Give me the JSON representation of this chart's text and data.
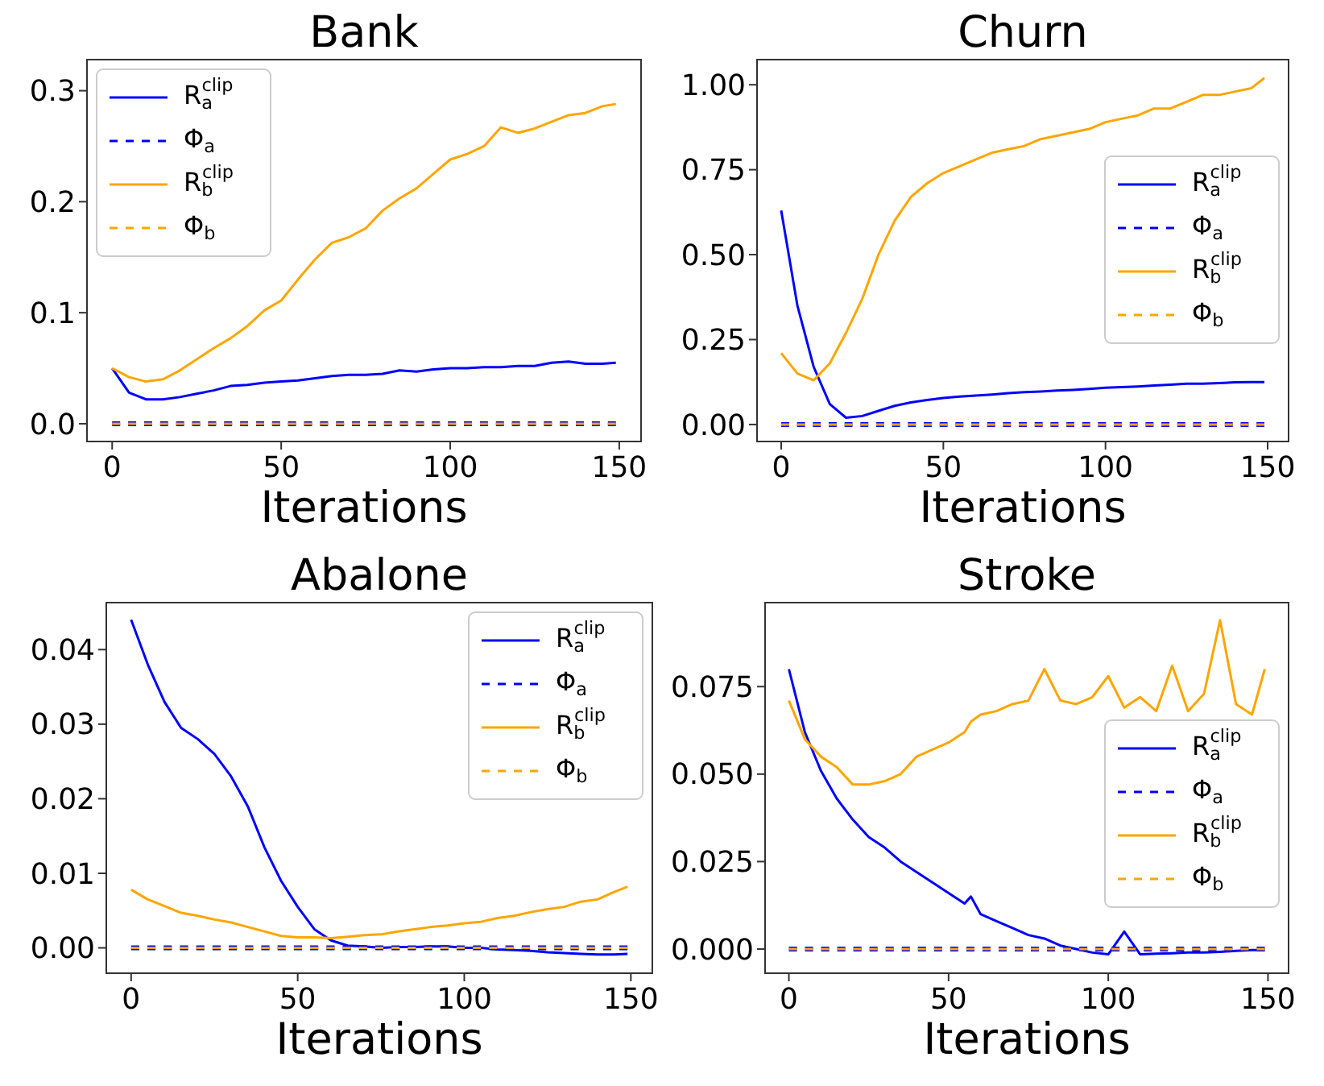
{
  "chart_data": [
    {
      "type": "line",
      "title": "Bank",
      "xlabel": "Iterations",
      "legend": "top left",
      "xlim": [
        -7.45,
        156.45
      ],
      "ylim": [
        -0.016,
        0.328
      ],
      "xticks": [
        0,
        50,
        100,
        150
      ],
      "yticks": [
        {
          "value": 0,
          "label": "0.0"
        },
        {
          "value": 0.1,
          "label": "0.1"
        },
        {
          "value": 0.2,
          "label": "0.2"
        },
        {
          "value": 0.3,
          "label": "0.3"
        }
      ],
      "x": [
        0,
        5,
        10,
        15,
        20,
        25,
        30,
        35,
        40,
        45,
        50,
        55,
        60,
        65,
        70,
        75,
        80,
        85,
        90,
        95,
        100,
        105,
        110,
        115,
        120,
        125,
        130,
        135,
        140,
        145,
        149
      ],
      "series": [
        {
          "name": "R$_{a}$$^{clip}$",
          "color": "#0000ff",
          "line_style": "solid",
          "values": [
            0.05,
            0.028,
            0.022,
            0.022,
            0.024,
            0.027,
            0.03,
            0.034,
            0.035,
            0.037,
            0.038,
            0.039,
            0.041,
            0.043,
            0.044,
            0.044,
            0.045,
            0.048,
            0.047,
            0.049,
            0.05,
            0.05,
            0.051,
            0.051,
            0.052,
            0.052,
            0.055,
            0.056,
            0.054,
            0.054,
            0.055
          ]
        },
        {
          "name": "Φ$_{a}$",
          "color": "#0000ff",
          "line_style": "dashed",
          "values": [
            0,
            0,
            0,
            0,
            0,
            0,
            0,
            0,
            0,
            0,
            0,
            0,
            0,
            0,
            0,
            0,
            0,
            0,
            0,
            0,
            0,
            0,
            0,
            0,
            0,
            0,
            0,
            0,
            0,
            0,
            0
          ]
        },
        {
          "name": "R$_{b}$$^{clip}$",
          "color": "#ffa500",
          "line_style": "solid",
          "values": [
            0.05,
            0.042,
            0.038,
            0.04,
            0.048,
            0.058,
            0.068,
            0.077,
            0.088,
            0.102,
            0.111,
            0.13,
            0.148,
            0.163,
            0.168,
            0.176,
            0.192,
            0.203,
            0.212,
            0.225,
            0.238,
            0.243,
            0.25,
            0.267,
            0.262,
            0.266,
            0.272,
            0.278,
            0.28,
            0.286,
            0.288
          ]
        },
        {
          "name": "Φ$_{b}$",
          "color": "#ffa500",
          "line_style": "dashed",
          "values": [
            0,
            0,
            0,
            0,
            0,
            0,
            0,
            0,
            0,
            0,
            0,
            0,
            0,
            0,
            0,
            0,
            0,
            0,
            0,
            0,
            0,
            0,
            0,
            0,
            0,
            0,
            0,
            0,
            0,
            0,
            0
          ]
        }
      ]
    },
    {
      "type": "line",
      "title": "Churn",
      "xlabel": "Iterations",
      "legend": "right",
      "xlim": [
        -7.45,
        156.45
      ],
      "ylim": [
        -0.05,
        1.074
      ],
      "xticks": [
        0,
        50,
        100,
        150
      ],
      "yticks": [
        {
          "value": 0,
          "label": "0.00"
        },
        {
          "value": 0.25,
          "label": "0.25"
        },
        {
          "value": 0.5,
          "label": "0.50"
        },
        {
          "value": 0.75,
          "label": "0.75"
        },
        {
          "value": 1,
          "label": "1.00"
        }
      ],
      "x": [
        0,
        5,
        10,
        15,
        20,
        25,
        30,
        35,
        40,
        45,
        50,
        55,
        60,
        65,
        70,
        75,
        80,
        85,
        90,
        95,
        100,
        105,
        110,
        115,
        120,
        125,
        130,
        135,
        140,
        145,
        149
      ],
      "series": [
        {
          "name": "R$_{a}$$^{clip}$",
          "color": "#0000ff",
          "line_style": "solid",
          "values": [
            0.63,
            0.35,
            0.17,
            0.06,
            0.02,
            0.025,
            0.04,
            0.055,
            0.065,
            0.072,
            0.078,
            0.082,
            0.085,
            0.088,
            0.092,
            0.095,
            0.097,
            0.1,
            0.102,
            0.105,
            0.108,
            0.11,
            0.112,
            0.115,
            0.117,
            0.12,
            0.12,
            0.122,
            0.124,
            0.125,
            0.125
          ]
        },
        {
          "name": "Φ$_{a}$",
          "color": "#0000ff",
          "line_style": "dashed",
          "values": [
            0,
            0,
            0,
            0,
            0,
            0,
            0,
            0,
            0,
            0,
            0,
            0,
            0,
            0,
            0,
            0,
            0,
            0,
            0,
            0,
            0,
            0,
            0,
            0,
            0,
            0,
            0,
            0,
            0,
            0,
            0
          ]
        },
        {
          "name": "R$_{b}$$^{clip}$",
          "color": "#ffa500",
          "line_style": "solid",
          "values": [
            0.21,
            0.15,
            0.13,
            0.18,
            0.27,
            0.37,
            0.5,
            0.6,
            0.67,
            0.71,
            0.74,
            0.76,
            0.78,
            0.8,
            0.81,
            0.82,
            0.84,
            0.85,
            0.86,
            0.87,
            0.89,
            0.9,
            0.91,
            0.93,
            0.93,
            0.95,
            0.97,
            0.97,
            0.98,
            0.99,
            1.02
          ]
        },
        {
          "name": "Φ$_{b}$",
          "color": "#ffa500",
          "line_style": "dashed",
          "values": [
            0,
            0,
            0,
            0,
            0,
            0,
            0,
            0,
            0,
            0,
            0,
            0,
            0,
            0,
            0,
            0,
            0,
            0,
            0,
            0,
            0,
            0,
            0,
            0,
            0,
            0,
            0,
            0,
            0,
            0,
            0
          ]
        }
      ]
    },
    {
      "type": "line",
      "title": "Abalone",
      "xlabel": "Iterations",
      "legend": "top right",
      "xlim": [
        -7.45,
        156.45
      ],
      "ylim": [
        -0.0034,
        0.0463
      ],
      "xticks": [
        0,
        50,
        100,
        150
      ],
      "yticks": [
        {
          "value": 0,
          "label": "0.00"
        },
        {
          "value": 0.01,
          "label": "0.01"
        },
        {
          "value": 0.02,
          "label": "0.02"
        },
        {
          "value": 0.03,
          "label": "0.03"
        },
        {
          "value": 0.04,
          "label": "0.04"
        }
      ],
      "x": [
        0,
        5,
        10,
        15,
        20,
        25,
        30,
        35,
        40,
        45,
        50,
        55,
        60,
        65,
        70,
        75,
        80,
        85,
        90,
        95,
        100,
        105,
        110,
        115,
        120,
        125,
        130,
        135,
        140,
        145,
        149
      ],
      "series": [
        {
          "name": "R$_{a}$$^{clip}$",
          "color": "#0000ff",
          "line_style": "solid",
          "values": [
            0.044,
            0.038,
            0.033,
            0.0295,
            0.028,
            0.026,
            0.023,
            0.019,
            0.0135,
            0.009,
            0.0055,
            0.0025,
            0.001,
            0.0003,
            0.0002,
            0,
            0.0001,
            0.0001,
            0.0002,
            0.0002,
            0,
            0,
            -0.0002,
            -0.0003,
            -0.0004,
            -0.0006,
            -0.0007,
            -0.0008,
            -0.0009,
            -0.0009,
            -0.0008
          ]
        },
        {
          "name": "Φ$_{a}$",
          "color": "#0000ff",
          "line_style": "dashed",
          "values": [
            0,
            0,
            0,
            0,
            0,
            0,
            0,
            0,
            0,
            0,
            0,
            0,
            0,
            0,
            0,
            0,
            0,
            0,
            0,
            0,
            0,
            0,
            0,
            0,
            0,
            0,
            0,
            0,
            0,
            0,
            0
          ]
        },
        {
          "name": "R$_{b}$$^{clip}$",
          "color": "#ffa500",
          "line_style": "solid",
          "values": [
            0.0078,
            0.0065,
            0.0056,
            0.0047,
            0.0043,
            0.0038,
            0.0034,
            0.0028,
            0.0022,
            0.0016,
            0.0014,
            0.0014,
            0.0013,
            0.0015,
            0.0017,
            0.0018,
            0.0022,
            0.0025,
            0.0028,
            0.003,
            0.0033,
            0.0035,
            0.004,
            0.0043,
            0.0048,
            0.0052,
            0.0055,
            0.0062,
            0.0065,
            0.0075,
            0.0082
          ]
        },
        {
          "name": "Φ$_{b}$",
          "color": "#ffa500",
          "line_style": "dashed",
          "values": [
            0,
            0,
            0,
            0,
            0,
            0,
            0,
            0,
            0,
            0,
            0,
            0,
            0,
            0,
            0,
            0,
            0,
            0,
            0,
            0,
            0,
            0,
            0,
            0,
            0,
            0,
            0,
            0,
            0,
            0,
            0
          ]
        }
      ]
    },
    {
      "type": "line",
      "title": "Stroke",
      "xlabel": "Iterations",
      "legend": "right",
      "xlim": [
        -7.45,
        156.45
      ],
      "ylim": [
        -0.0069,
        0.099
      ],
      "xticks": [
        0,
        50,
        100,
        150
      ],
      "yticks": [
        {
          "value": 0,
          "label": "0.000"
        },
        {
          "value": 0.025,
          "label": "0.025"
        },
        {
          "value": 0.05,
          "label": "0.050"
        },
        {
          "value": 0.075,
          "label": "0.075"
        }
      ],
      "x": [
        0,
        5,
        10,
        15,
        20,
        25,
        30,
        35,
        40,
        45,
        50,
        55,
        57,
        60,
        65,
        70,
        75,
        80,
        85,
        90,
        95,
        100,
        105,
        110,
        115,
        120,
        125,
        130,
        135,
        140,
        145,
        149
      ],
      "series": [
        {
          "name": "R$_{a}$$^{clip}$",
          "color": "#0000ff",
          "line_style": "solid",
          "values": [
            0.08,
            0.062,
            0.051,
            0.043,
            0.037,
            0.032,
            0.029,
            0.025,
            0.022,
            0.019,
            0.016,
            0.013,
            0.015,
            0.01,
            0.008,
            0.006,
            0.004,
            0.003,
            0.001,
            0,
            -0.001,
            -0.0015,
            0.005,
            -0.0015,
            -0.0013,
            -0.0012,
            -0.001,
            -0.001,
            -0.0008,
            -0.0005,
            -0.0003,
            -0.0003
          ]
        },
        {
          "name": "Φ$_{a}$",
          "color": "#0000ff",
          "line_style": "dashed",
          "values": [
            0,
            0,
            0,
            0,
            0,
            0,
            0,
            0,
            0,
            0,
            0,
            0,
            0,
            0,
            0,
            0,
            0,
            0,
            0,
            0,
            0,
            0,
            0,
            0,
            0,
            0,
            0,
            0,
            0,
            0,
            0,
            0
          ]
        },
        {
          "name": "R$_{b}$$^{clip}$",
          "color": "#ffa500",
          "line_style": "solid",
          "values": [
            0.071,
            0.06,
            0.055,
            0.052,
            0.047,
            0.047,
            0.048,
            0.05,
            0.055,
            0.057,
            0.059,
            0.062,
            0.065,
            0.067,
            0.068,
            0.07,
            0.071,
            0.08,
            0.071,
            0.07,
            0.072,
            0.078,
            0.069,
            0.072,
            0.068,
            0.081,
            0.068,
            0.073,
            0.094,
            0.07,
            0.067,
            0.08
          ]
        },
        {
          "name": "Φ$_{b}$",
          "color": "#ffa500",
          "line_style": "dashed",
          "values": [
            0,
            0,
            0,
            0,
            0,
            0,
            0,
            0,
            0,
            0,
            0,
            0,
            0,
            0,
            0,
            0,
            0,
            0,
            0,
            0,
            0,
            0,
            0,
            0,
            0,
            0,
            0,
            0,
            0,
            0,
            0,
            0
          ]
        }
      ]
    }
  ]
}
